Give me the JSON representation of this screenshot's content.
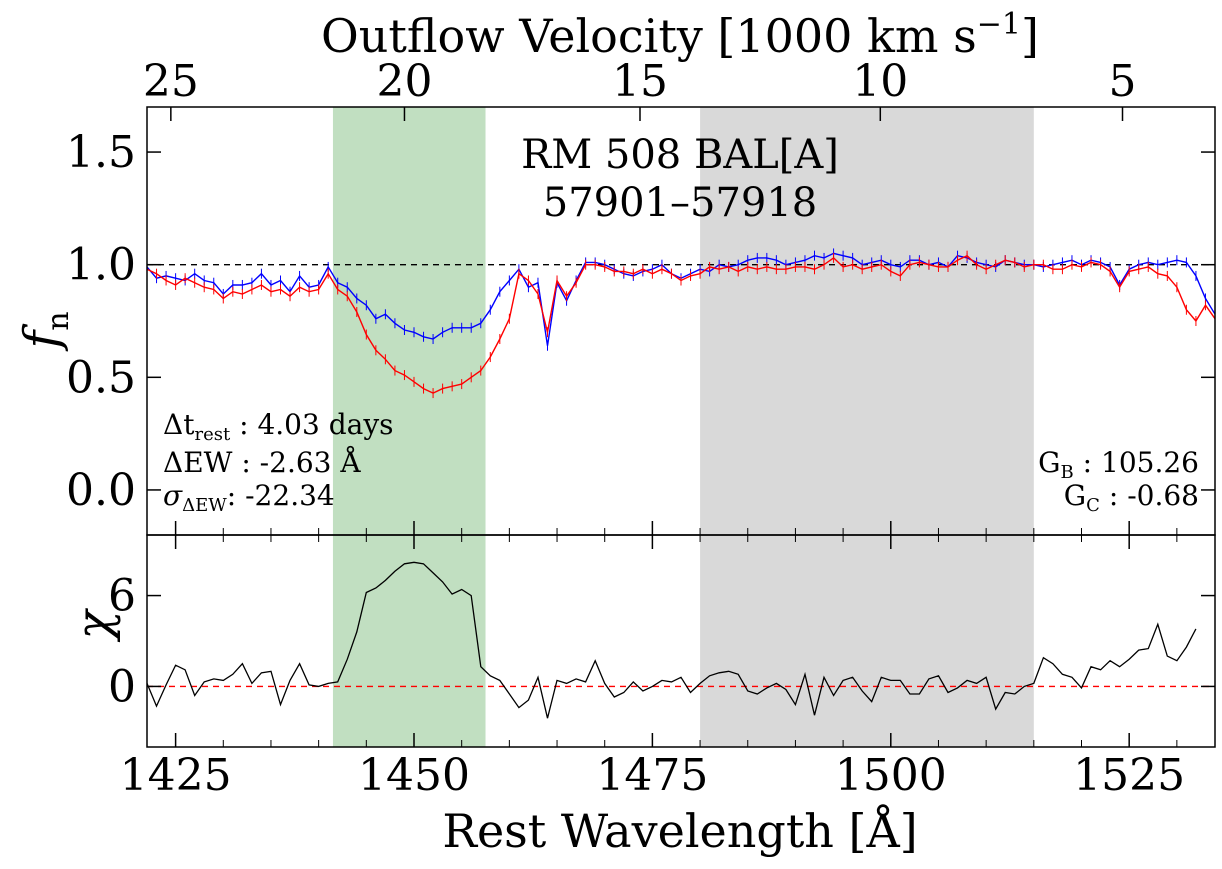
{
  "chart_data": [
    {
      "type": "line",
      "panel": "top",
      "title_line1": "RM 508 BAL[A]",
      "title_line2": "57901–57918",
      "ylabel": "f",
      "ylabel_sub": "n",
      "top_axis_label": "Outflow Velocity [1000 km s",
      "top_axis_label_sup": "−1",
      "top_axis_label_end": "]",
      "top_ticks": [
        {
          "label": "25",
          "wavelength": 1424.5
        },
        {
          "label": "20",
          "wavelength": 1449.0
        },
        {
          "label": "15",
          "wavelength": 1473.7
        },
        {
          "label": "10",
          "wavelength": 1498.9
        },
        {
          "label": "5",
          "wavelength": 1524.3
        }
      ],
      "xlim": [
        1422,
        1534
      ],
      "ylim": [
        -0.2,
        1.7
      ],
      "yticks": [
        "0.0",
        "0.5",
        "1.0",
        "1.5"
      ],
      "yticks_values": [
        0.0,
        0.5,
        1.0,
        1.5
      ],
      "regions": [
        {
          "name": "green",
          "x0": 1441.5,
          "x1": 1457.5,
          "color": "#c1dfc1"
        },
        {
          "name": "gray",
          "x0": 1480.0,
          "x1": 1515.0,
          "color": "#d9d9d9"
        }
      ],
      "reference_line": 1.0,
      "annotations_left": {
        "dt_label": "Δt",
        "dt_sub": "rest",
        "dt_value": " : 4.03 days",
        "dew_text": "ΔEW : -2.63 Å",
        "sigma_label": "σ",
        "sigma_sub": "ΔEW",
        "sigma_value": ": -22.34"
      },
      "annotations_right": {
        "gb_label": "G",
        "gb_sub": "B",
        "gb_value": " : 105.26",
        "gc_label": "G",
        "gc_sub": "C",
        "gc_value": " : -0.68"
      },
      "series": [
        {
          "name": "",
          "color": "#0000ff",
          "x_start": 1422,
          "x_step": 1,
          "values": [
            0.99,
            0.94,
            0.95,
            0.94,
            0.93,
            0.96,
            0.93,
            0.92,
            0.87,
            0.91,
            0.91,
            0.92,
            0.96,
            0.91,
            0.93,
            0.88,
            0.95,
            0.9,
            0.91,
            0.99,
            0.92,
            0.9,
            0.85,
            0.82,
            0.76,
            0.78,
            0.74,
            0.71,
            0.7,
            0.68,
            0.67,
            0.7,
            0.72,
            0.72,
            0.72,
            0.74,
            0.8,
            0.88,
            0.93,
            0.98,
            0.9,
            0.92,
            0.64,
            0.92,
            0.84,
            0.93,
            1.01,
            1.01,
            1.0,
            0.98,
            0.96,
            0.95,
            0.97,
            0.98,
            1.0,
            0.96,
            0.94,
            0.96,
            0.98,
            0.97,
            1.0,
            0.99,
            1.0,
            1.02,
            1.03,
            1.03,
            1.02,
            1.0,
            1.01,
            1.02,
            1.04,
            1.03,
            1.05,
            1.04,
            1.03,
            1.0,
            1.01,
            1.02,
            1.0,
            0.99,
            1.02,
            1.02,
            1.0,
            1.01,
            0.99,
            1.04,
            1.03,
            1.01,
            1.0,
            0.99,
            1.02,
            1.01,
            1.0,
            1.0,
            0.99,
            1.0,
            1.01,
            1.02,
            1.0,
            1.02,
            1.01,
            0.99,
            0.91,
            0.98,
            1.0,
            1.01,
            1.0,
            1.01,
            1.02,
            1.01,
            0.95,
            0.85,
            0.78
          ]
        },
        {
          "name": "",
          "color": "#ff0000",
          "x_start": 1422,
          "x_step": 1,
          "values": [
            0.98,
            0.96,
            0.93,
            0.91,
            0.94,
            0.92,
            0.9,
            0.89,
            0.85,
            0.88,
            0.87,
            0.89,
            0.91,
            0.88,
            0.89,
            0.86,
            0.9,
            0.88,
            0.89,
            0.96,
            0.89,
            0.86,
            0.79,
            0.69,
            0.62,
            0.58,
            0.53,
            0.51,
            0.48,
            0.45,
            0.43,
            0.45,
            0.46,
            0.47,
            0.5,
            0.53,
            0.59,
            0.67,
            0.76,
            0.96,
            0.93,
            0.87,
            0.7,
            0.93,
            0.86,
            0.92,
            1.0,
            1.0,
            0.99,
            0.97,
            0.97,
            0.96,
            0.98,
            0.96,
            0.98,
            0.96,
            0.93,
            0.95,
            0.96,
            0.99,
            0.98,
            0.99,
            0.97,
            0.99,
            0.98,
            0.99,
            0.98,
            0.98,
            0.99,
            0.99,
            0.98,
            1.0,
            1.03,
            0.99,
            1.0,
            0.98,
            0.99,
            1.0,
            0.97,
            0.95,
            1.0,
            1.01,
            1.0,
            0.99,
            0.99,
            1.02,
            1.04,
            1.0,
            0.98,
            1.0,
            1.02,
            1.01,
            0.99,
            1.0,
            1.0,
            0.98,
            0.98,
            1.0,
            0.99,
            1.01,
            1.0,
            0.97,
            0.9,
            0.97,
            0.98,
            0.99,
            0.96,
            0.95,
            0.9,
            0.8,
            0.75,
            0.82,
            0.76,
            0.66
          ]
        }
      ]
    },
    {
      "type": "line",
      "panel": "bottom",
      "ylabel": "χ",
      "xlabel": "Rest Wavelength [Å]",
      "xlim": [
        1422,
        1534
      ],
      "xticks": [
        "1425",
        "1450",
        "1475",
        "1500",
        "1525"
      ],
      "xticks_values": [
        1425,
        1450,
        1475,
        1500,
        1525
      ],
      "ylim": [
        -4,
        10
      ],
      "yticks": [
        "0",
        "6"
      ],
      "yticks_values": [
        0,
        6
      ],
      "reference_line": 0,
      "series": [
        {
          "name": "",
          "color": "#000000",
          "x_start": 1422,
          "x_step": 1,
          "values": [
            0.2,
            -1.3,
            0.1,
            1.4,
            1.1,
            -0.6,
            0.3,
            0.5,
            0.4,
            0.8,
            1.5,
            0.2,
            0.9,
            1.0,
            -1.2,
            0.4,
            1.5,
            0.1,
            0.0,
            0.2,
            0.3,
            1.8,
            3.6,
            6.2,
            6.5,
            7.0,
            7.6,
            8.1,
            8.2,
            8.1,
            7.5,
            6.9,
            6.1,
            6.4,
            6.0,
            1.3,
            0.7,
            0.4,
            -0.5,
            -1.4,
            -0.9,
            0.6,
            -2.1,
            0.4,
            0.2,
            0.5,
            0.3,
            1.7,
            0.2,
            -0.7,
            -0.4,
            0.3,
            -0.3,
            0.0,
            0.4,
            0.3,
            0.6,
            -0.4,
            0.2,
            0.7,
            0.9,
            1.0,
            0.8,
            -0.3,
            -0.5,
            -0.1,
            0.2,
            -0.2,
            -1.2,
            0.8,
            -1.9,
            0.6,
            -0.6,
            0.4,
            0.6,
            -0.3,
            -1.0,
            0.6,
            0.4,
            0.4,
            -0.5,
            -0.5,
            0.5,
            0.7,
            -0.4,
            -0.1,
            0.4,
            0.2,
            0.6,
            -1.5,
            -0.4,
            -0.5,
            0.0,
            0.2,
            1.9,
            1.5,
            0.8,
            0.6,
            -0.1,
            1.3,
            1.1,
            1.7,
            1.3,
            1.8,
            2.4,
            2.5,
            4.1,
            2.0,
            1.7,
            2.6,
            3.8
          ]
        }
      ]
    }
  ],
  "axes": {
    "top_label_text": "Outflow Velocity [1000 km s",
    "bottom_label_text": "Rest Wavelength [Å]"
  }
}
